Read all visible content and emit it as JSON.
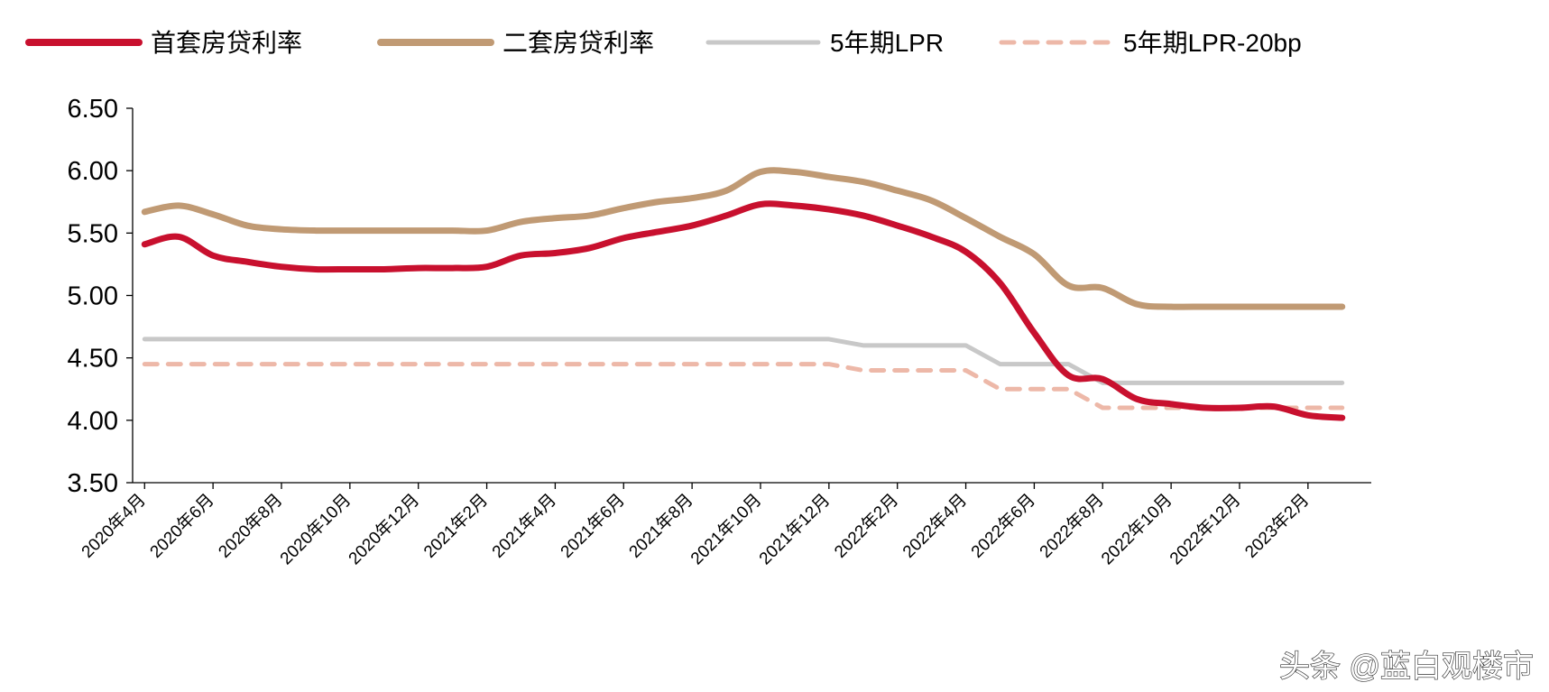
{
  "chart_data": {
    "type": "line",
    "title": "",
    "xlabel": "",
    "ylabel": "",
    "ylim": [
      3.5,
      6.5
    ],
    "yticks": [
      "3.50",
      "4.00",
      "4.50",
      "5.00",
      "5.50",
      "6.00",
      "6.50"
    ],
    "grid": false,
    "legend_position": "top",
    "x": [
      "2020-04",
      "2020-05",
      "2020-06",
      "2020-07",
      "2020-08",
      "2020-09",
      "2020-10",
      "2020-11",
      "2020-12",
      "2021-01",
      "2021-02",
      "2021-03",
      "2021-04",
      "2021-05",
      "2021-06",
      "2021-07",
      "2021-08",
      "2021-09",
      "2021-10",
      "2021-11",
      "2021-12",
      "2022-01",
      "2022-02",
      "2022-03",
      "2022-04",
      "2022-05",
      "2022-06",
      "2022-07",
      "2022-08",
      "2022-09",
      "2022-10",
      "2022-11",
      "2022-12",
      "2023-01",
      "2023-02",
      "2023-03"
    ],
    "xtick_labels": [
      "2020年4月",
      "2020年6月",
      "2020年8月",
      "2020年10月",
      "2020年12月",
      "2021年2月",
      "2021年4月",
      "2021年6月",
      "2021年8月",
      "2021年10月",
      "2021年12月",
      "2022年2月",
      "2022年4月",
      "2022年6月",
      "2022年8月",
      "2022年10月",
      "2022年12月",
      "2023年2月"
    ],
    "series": [
      {
        "name": "首套房贷利率",
        "color": "#C8102E",
        "style": "solid",
        "values": [
          5.41,
          5.47,
          5.32,
          5.27,
          5.23,
          5.21,
          5.21,
          5.21,
          5.22,
          5.22,
          5.23,
          5.32,
          5.34,
          5.38,
          5.46,
          5.51,
          5.56,
          5.64,
          5.73,
          5.72,
          5.69,
          5.64,
          5.56,
          5.47,
          5.35,
          5.1,
          4.7,
          4.36,
          4.33,
          4.17,
          4.13,
          4.1,
          4.1,
          4.11,
          4.04,
          4.02
        ]
      },
      {
        "name": "二套房贷利率",
        "color": "#C09A74",
        "style": "solid",
        "values": [
          5.67,
          5.72,
          5.65,
          5.56,
          5.53,
          5.52,
          5.52,
          5.52,
          5.52,
          5.52,
          5.52,
          5.59,
          5.62,
          5.64,
          5.7,
          5.75,
          5.78,
          5.84,
          5.99,
          5.99,
          5.95,
          5.91,
          5.84,
          5.76,
          5.62,
          5.47,
          5.33,
          5.08,
          5.06,
          4.93,
          4.91,
          4.91,
          4.91,
          4.91,
          4.91,
          4.91
        ]
      },
      {
        "name": "5年期LPR",
        "color": "#C8C8C8",
        "style": "solid",
        "values": [
          4.65,
          4.65,
          4.65,
          4.65,
          4.65,
          4.65,
          4.65,
          4.65,
          4.65,
          4.65,
          4.65,
          4.65,
          4.65,
          4.65,
          4.65,
          4.65,
          4.65,
          4.65,
          4.65,
          4.65,
          4.65,
          4.6,
          4.6,
          4.6,
          4.6,
          4.45,
          4.45,
          4.45,
          4.3,
          4.3,
          4.3,
          4.3,
          4.3,
          4.3,
          4.3,
          4.3
        ]
      },
      {
        "name": "5年期LPR-20bp",
        "color": "#EDB8A8",
        "style": "dashed",
        "values": [
          4.45,
          4.45,
          4.45,
          4.45,
          4.45,
          4.45,
          4.45,
          4.45,
          4.45,
          4.45,
          4.45,
          4.45,
          4.45,
          4.45,
          4.45,
          4.45,
          4.45,
          4.45,
          4.45,
          4.45,
          4.45,
          4.4,
          4.4,
          4.4,
          4.4,
          4.25,
          4.25,
          4.25,
          4.1,
          4.1,
          4.1,
          4.1,
          4.1,
          4.1,
          4.1,
          4.1
        ]
      }
    ]
  },
  "watermark": "头条 @蓝白观楼市"
}
